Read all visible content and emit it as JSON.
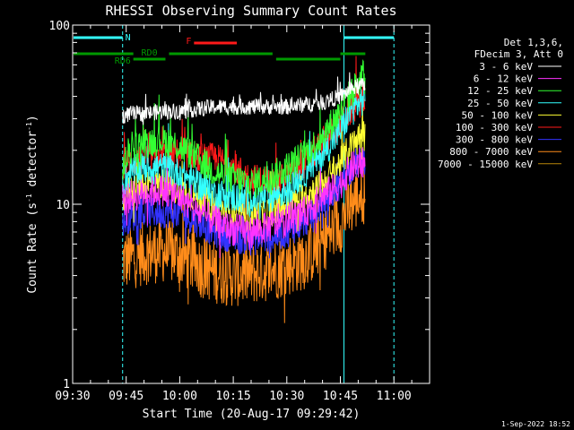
{
  "chart_data": {
    "type": "line",
    "title": "RHESSI Observing Summary Count Rates",
    "xlabel": "Start Time (20-Aug-17 09:29:42)",
    "ylabel": "Count Rate (s⁻¹ detector⁻¹)",
    "ylabel_parts": {
      "main": "Count Rate (s",
      "sup1": "-1",
      "mid": " detector",
      "sup2": "-1",
      "end": ")"
    },
    "y_scale": "log",
    "ylim": [
      1,
      100
    ],
    "xlim": [
      "09:30",
      "11:10"
    ],
    "x_ticks": [
      "09:30",
      "09:45",
      "10:00",
      "10:15",
      "10:30",
      "10:45",
      "11:00"
    ],
    "x_tick_minutes": [
      0,
      15,
      30,
      45,
      60,
      75,
      90
    ],
    "y_ticks": [
      {
        "label": "1",
        "value": 1
      },
      {
        "label": "10",
        "value": 10
      },
      {
        "label": "100",
        "value": 100
      }
    ],
    "grid": false,
    "legend_position": "top-right",
    "legend_header": [
      "Det 1,3,6,",
      "FDecim 3, Att 0"
    ],
    "footer_timestamp": "1-Sep-2022 18:52",
    "data_start_min": 14,
    "data_end_min": 82,
    "series": [
      {
        "name": "3 - 6 keV",
        "color": "#ffffff",
        "values": [
          [
            14,
            31
          ],
          [
            16,
            32
          ],
          [
            20,
            32
          ],
          [
            25,
            33
          ],
          [
            30,
            33
          ],
          [
            35,
            34
          ],
          [
            40,
            35
          ],
          [
            45,
            35
          ],
          [
            50,
            35
          ],
          [
            55,
            35
          ],
          [
            60,
            35
          ],
          [
            65,
            36
          ],
          [
            70,
            37
          ],
          [
            75,
            40
          ],
          [
            78,
            44
          ],
          [
            81,
            46
          ]
        ]
      },
      {
        "name": "6 - 12 keV",
        "color": "#ff33ff",
        "values": [
          [
            14,
            10
          ],
          [
            16,
            11
          ],
          [
            20,
            11.5
          ],
          [
            25,
            12
          ],
          [
            30,
            11
          ],
          [
            35,
            9
          ],
          [
            40,
            8
          ],
          [
            45,
            7.2
          ],
          [
            50,
            7
          ],
          [
            55,
            7.5
          ],
          [
            60,
            8
          ],
          [
            65,
            9
          ],
          [
            70,
            11
          ],
          [
            75,
            13
          ],
          [
            78,
            16
          ],
          [
            81,
            17
          ]
        ]
      },
      {
        "name": "12 - 25 keV",
        "color": "#33ff33",
        "values": [
          [
            14,
            16
          ],
          [
            16,
            20
          ],
          [
            20,
            22
          ],
          [
            25,
            23
          ],
          [
            30,
            21
          ],
          [
            35,
            18
          ],
          [
            40,
            15
          ],
          [
            45,
            14
          ],
          [
            50,
            13
          ],
          [
            55,
            14
          ],
          [
            60,
            16
          ],
          [
            65,
            19
          ],
          [
            70,
            24
          ],
          [
            75,
            33
          ],
          [
            78,
            42
          ],
          [
            81,
            50
          ]
        ]
      },
      {
        "name": "25 - 50 keV",
        "color": "#33ffff",
        "values": [
          [
            14,
            13
          ],
          [
            16,
            15
          ],
          [
            20,
            16
          ],
          [
            25,
            16
          ],
          [
            30,
            15
          ],
          [
            35,
            13
          ],
          [
            40,
            11.5
          ],
          [
            45,
            11
          ],
          [
            50,
            10.5
          ],
          [
            55,
            11
          ],
          [
            60,
            12
          ],
          [
            65,
            15
          ],
          [
            70,
            19
          ],
          [
            75,
            26
          ],
          [
            78,
            33
          ],
          [
            81,
            38
          ]
        ]
      },
      {
        "name": "50 - 100 keV",
        "color": "#ffff33",
        "values": [
          [
            14,
            11
          ],
          [
            16,
            12
          ],
          [
            20,
            13
          ],
          [
            25,
            13
          ],
          [
            30,
            12
          ],
          [
            35,
            11
          ],
          [
            40,
            9.5
          ],
          [
            45,
            9
          ],
          [
            50,
            8.5
          ],
          [
            55,
            9
          ],
          [
            60,
            10
          ],
          [
            65,
            11
          ],
          [
            70,
            13
          ],
          [
            75,
            17
          ],
          [
            78,
            21
          ],
          [
            81,
            24
          ]
        ]
      },
      {
        "name": "100 - 300 keV",
        "color": "#ff1a1a",
        "values": [
          [
            14,
            16
          ],
          [
            16,
            17
          ],
          [
            20,
            18
          ],
          [
            25,
            19
          ],
          [
            30,
            19
          ],
          [
            35,
            18
          ],
          [
            40,
            18
          ],
          [
            45,
            16
          ],
          [
            50,
            14
          ],
          [
            55,
            13
          ],
          [
            60,
            14
          ],
          [
            65,
            17
          ],
          [
            70,
            22
          ],
          [
            75,
            28
          ],
          [
            78,
            34
          ],
          [
            81,
            38
          ]
        ]
      },
      {
        "name": "300 - 800 keV",
        "color": "#3333ff",
        "values": [
          [
            14,
            8
          ],
          [
            16,
            8.5
          ],
          [
            20,
            9
          ],
          [
            25,
            9
          ],
          [
            30,
            9
          ],
          [
            35,
            8
          ],
          [
            40,
            7
          ],
          [
            45,
            6.5
          ],
          [
            50,
            6.3
          ],
          [
            55,
            6.5
          ],
          [
            60,
            7
          ],
          [
            65,
            8
          ],
          [
            70,
            10
          ],
          [
            75,
            13
          ],
          [
            78,
            16
          ],
          [
            81,
            18
          ]
        ]
      },
      {
        "name": "800 - 7000 keV",
        "color": "#ff8c1a",
        "values": [
          [
            14,
            4.8
          ],
          [
            16,
            5
          ],
          [
            20,
            5.3
          ],
          [
            25,
            5.5
          ],
          [
            30,
            5.2
          ],
          [
            35,
            4.6
          ],
          [
            40,
            4.2
          ],
          [
            45,
            4
          ],
          [
            50,
            4.1
          ],
          [
            55,
            4.3
          ],
          [
            60,
            4.6
          ],
          [
            65,
            5
          ],
          [
            70,
            6.2
          ],
          [
            75,
            8
          ],
          [
            78,
            10
          ],
          [
            81,
            11.5
          ]
        ]
      },
      {
        "name": "7000 - 15000 keV",
        "color": "#b8860b",
        "values": []
      }
    ],
    "status_bars": [
      {
        "label": "N",
        "color": "#33ffff",
        "start": 0,
        "end": 14,
        "level": 1,
        "label_at": 15.5
      },
      {
        "label": "",
        "color": "#33ffff",
        "start": 76,
        "end": 90,
        "level": 1
      },
      {
        "label": "RD6",
        "color": "#009900",
        "start": 0,
        "end": 17,
        "level": 2,
        "label_at": 14,
        "label_below": true
      },
      {
        "label": "RD0",
        "color": "#009900",
        "start": 17,
        "end": 26,
        "level": 3,
        "label_at": 21.5,
        "label_above": true
      },
      {
        "label": "",
        "color": "#009900",
        "start": 27,
        "end": 56,
        "level": 2
      },
      {
        "label": "",
        "color": "#009900",
        "start": 57,
        "end": 75,
        "level": 3
      },
      {
        "label": "",
        "color": "#009900",
        "start": 75,
        "end": 82,
        "level": 2
      },
      {
        "label": "F",
        "color": "#ff1a1a",
        "start": 34,
        "end": 46,
        "level": 0,
        "label_at": 32.5
      }
    ],
    "vertical_markers": [
      {
        "minute": 0,
        "color": "#33ffff",
        "style": "solid"
      },
      {
        "minute": 14,
        "color": "#33ffff",
        "style": "dashed"
      },
      {
        "minute": 76,
        "color": "#33ffff",
        "style": "solid"
      },
      {
        "minute": 90,
        "color": "#33ffff",
        "style": "dashed"
      }
    ]
  }
}
